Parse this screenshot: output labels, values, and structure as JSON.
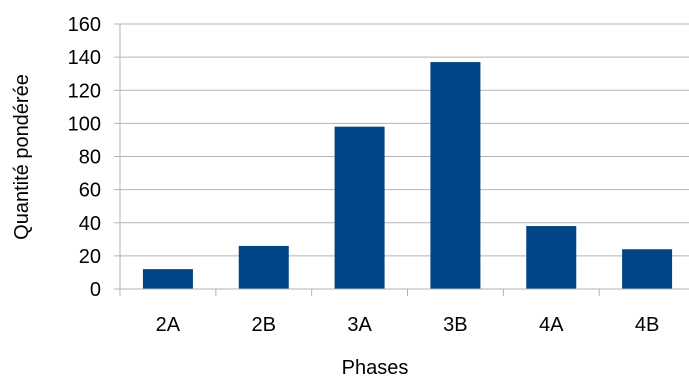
{
  "chart_data": {
    "type": "bar",
    "categories": [
      "2A",
      "2B",
      "3A",
      "3B",
      "4A",
      "4B"
    ],
    "values": [
      12,
      26,
      98,
      137,
      38,
      24
    ],
    "title": "",
    "xlabel": "Phases",
    "ylabel": "Quantité pondérée",
    "ylim": [
      0,
      160
    ],
    "yticks": [
      "0",
      "20",
      "40",
      "60",
      "80",
      "100",
      "120",
      "140",
      "160"
    ],
    "grid": true,
    "legend": "none",
    "bar_color": "#004586",
    "grid_color": "#b3b3b3"
  }
}
